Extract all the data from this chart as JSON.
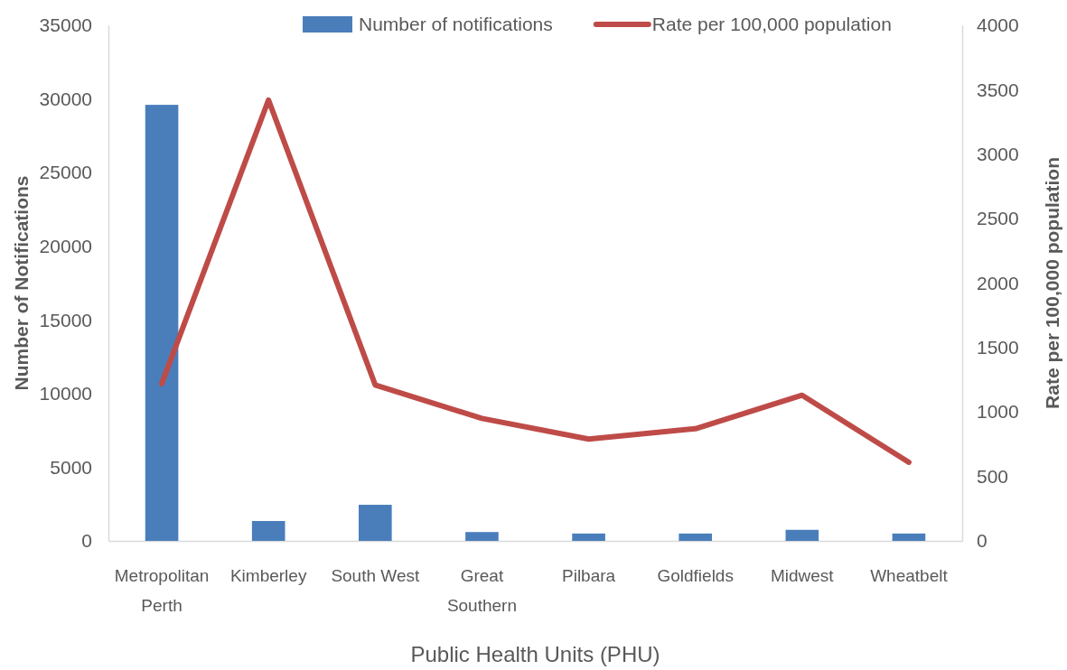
{
  "chart_data": {
    "type": "bar",
    "xlabel": "Public Health Units (PHU)",
    "ylabel": "Number of Notifications",
    "y2label": "Rate per 100,000 population",
    "categories": [
      "Metropolitan Perth",
      "Kimberley",
      "South West",
      "Great Southern",
      "Pilbara",
      "Goldfields",
      "Midwest",
      "Wheatbelt"
    ],
    "series": [
      {
        "name": "Number of notifications",
        "color": "#4a7ebb",
        "values": [
          29600,
          1350,
          2450,
          600,
          500,
          500,
          750,
          500
        ]
      },
      {
        "name": "Rate per 100,000 population",
        "type": "line",
        "axis": "y2",
        "color": "#be4b48",
        "values": [
          1220,
          3420,
          1210,
          950,
          790,
          870,
          1130,
          610
        ]
      }
    ],
    "ylim": [
      0,
      35000
    ],
    "yticks": [
      0,
      5000,
      10000,
      15000,
      20000,
      25000,
      30000,
      35000
    ],
    "y2lim": [
      0,
      4000
    ],
    "y2ticks": [
      0,
      500,
      1000,
      1500,
      2000,
      2500,
      3000,
      3500,
      4000
    ],
    "legend": "top",
    "grid": false,
    "marker": "none"
  }
}
